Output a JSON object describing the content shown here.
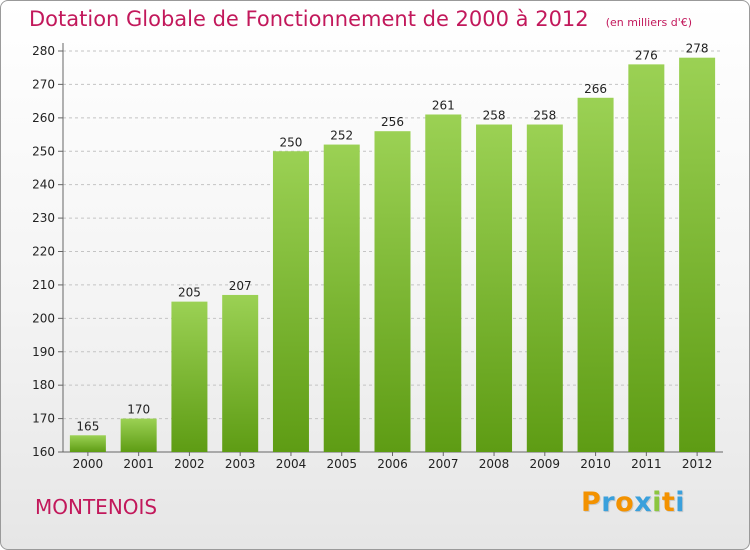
{
  "chart_data": {
    "type": "bar",
    "title": "Dotation Globale de Fonctionnement de 2000 à 2012",
    "subtitle": "(en milliers d'€)",
    "categories": [
      "2000",
      "2001",
      "2002",
      "2003",
      "2004",
      "2005",
      "2006",
      "2007",
      "2008",
      "2009",
      "2010",
      "2011",
      "2012"
    ],
    "values": [
      165,
      170,
      205,
      207,
      250,
      252,
      256,
      261,
      258,
      258,
      266,
      276,
      278
    ],
    "ylim": [
      160,
      280
    ],
    "yticks": [
      160,
      170,
      180,
      190,
      200,
      210,
      220,
      230,
      240,
      250,
      260,
      270,
      280
    ],
    "grid": true,
    "bar_color_top": "#9bd154",
    "bar_color_bottom": "#5e9c14"
  },
  "footer": {
    "commune": "MONTENOIS",
    "logo_letters": [
      "P",
      "r",
      "o",
      "x",
      "i",
      "t",
      "i"
    ],
    "logo_colors": [
      "#f39200",
      "#3aa0dc",
      "#f39200",
      "#3aa0dc",
      "#8cc63f",
      "#f39200",
      "#3aa0dc"
    ]
  },
  "colors": {
    "title": "#c2185b",
    "grid": "#c4c4c4"
  }
}
